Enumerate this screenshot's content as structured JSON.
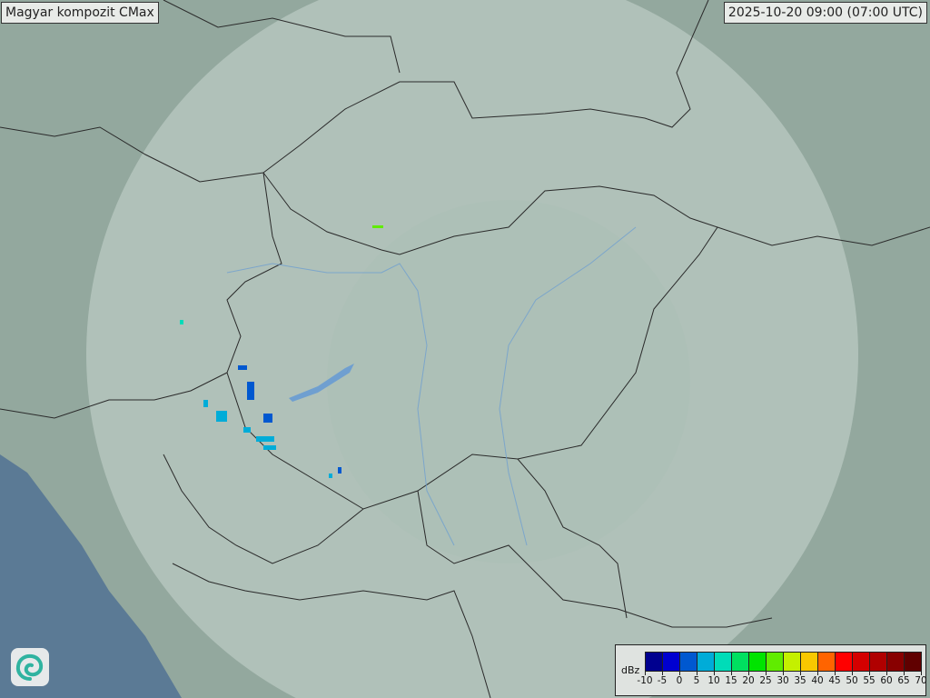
{
  "title": "Magyar kompozit  CMax",
  "timestamp": "2025-10-20 09:00 (07:00 UTC)",
  "legend": {
    "unit": "dBz",
    "ticks": [
      "-10",
      "-5",
      "0",
      "5",
      "10",
      "15",
      "20",
      "25",
      "30",
      "35",
      "40",
      "45",
      "50",
      "55",
      "60",
      "65",
      "70"
    ],
    "colors": [
      "#00008f",
      "#0000d0",
      "#0058d0",
      "#00acd8",
      "#00dcb8",
      "#00e060",
      "#00e400",
      "#60ec00",
      "#c4f000",
      "#f8c800",
      "#ff6400",
      "#ff0000",
      "#d40000",
      "#b00000",
      "#880000",
      "#600000"
    ]
  },
  "colors": {
    "background": "#8fa59a",
    "radar_range": "#c8d6cf",
    "border": "#2a2a2a",
    "sea": "#5b7a95",
    "river": "#6f9fd0"
  },
  "logo": "swirl-logo"
}
